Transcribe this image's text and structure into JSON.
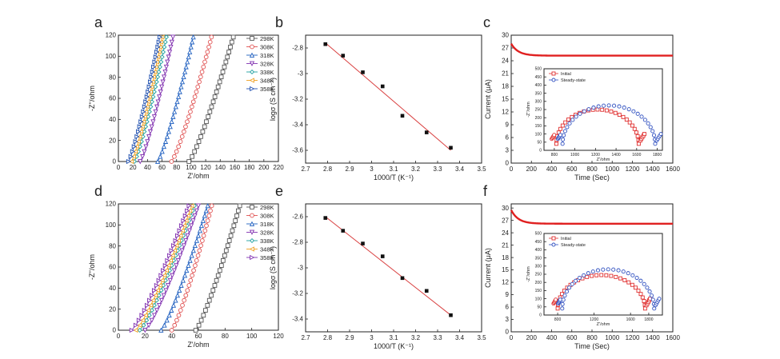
{
  "colors": {
    "axis": "#222222",
    "fit_line": "#d94040",
    "current_trace": "#e02020",
    "initial": "#e03030",
    "steady": "#3050c0"
  },
  "chart_data": [
    {
      "id": "a",
      "type": "line",
      "panel_label": "a",
      "xlabel": "Z'/ohm",
      "ylabel": "-Z''/ohm",
      "xlim": [
        0,
        220
      ],
      "ylim": [
        0,
        120
      ],
      "xticks": [
        0,
        20,
        40,
        60,
        80,
        100,
        120,
        140,
        160,
        180,
        200,
        220
      ],
      "yticks": [
        0,
        20,
        40,
        60,
        80,
        100,
        120
      ],
      "legend_position": "top-right",
      "series": [
        {
          "name": "298K",
          "color": "#555555",
          "marker": "square",
          "x0": 97,
          "x1": 158
        },
        {
          "name": "308K",
          "color": "#e05050",
          "marker": "circle",
          "x0": 73,
          "x1": 128
        },
        {
          "name": "318K",
          "color": "#2060c0",
          "marker": "triangle",
          "x0": 54,
          "x1": 103
        },
        {
          "name": "328K",
          "color": "#8030b0",
          "marker": "tri-down",
          "x0": 30,
          "x1": 75
        },
        {
          "name": "338K",
          "color": "#20a0a0",
          "marker": "diamond",
          "x0": 22,
          "x1": 66
        },
        {
          "name": "348K",
          "color": "#f0a020",
          "marker": "tri-left",
          "x0": 18,
          "x1": 60
        },
        {
          "name": "358K",
          "color": "#2050b0",
          "marker": "tri-right",
          "x0": 14,
          "x1": 57
        }
      ]
    },
    {
      "id": "b",
      "type": "scatter",
      "panel_label": "b",
      "xlabel": "1000/T (K⁻¹)",
      "ylabel": "logσ (S cm⁻¹)",
      "xlim": [
        2.7,
        3.5
      ],
      "ylim": [
        -3.7,
        -2.7
      ],
      "xticks": [
        2.7,
        2.8,
        2.9,
        3.0,
        3.1,
        3.2,
        3.3,
        3.4,
        3.5
      ],
      "yticks": [
        -3.6,
        -3.4,
        -3.2,
        -3.0,
        -2.8
      ],
      "points": [
        [
          2.79,
          -2.77
        ],
        [
          2.87,
          -2.86
        ],
        [
          2.96,
          -2.99
        ],
        [
          3.05,
          -3.1
        ],
        [
          3.14,
          -3.33
        ],
        [
          3.25,
          -3.46
        ],
        [
          3.36,
          -3.58
        ]
      ],
      "fit": [
        [
          2.79,
          -2.76
        ],
        [
          3.36,
          -3.6
        ]
      ]
    },
    {
      "id": "c",
      "type": "line",
      "panel_label": "c",
      "xlabel": "Time (Sec)",
      "ylabel": "Current (μA)",
      "xlim": [
        0,
        1600
      ],
      "ylim": [
        0,
        30
      ],
      "xticks": [
        0,
        200,
        400,
        600,
        800,
        1000,
        1200,
        1400,
        1600
      ],
      "yticks": [
        0,
        3,
        6,
        9,
        12,
        15,
        18,
        21,
        24,
        27,
        30
      ],
      "series": [
        {
          "i0": 28.0,
          "iss": 25.2
        }
      ],
      "inset": {
        "xlabel": "Z'/ohm",
        "ylabel": "-Z''/ohm",
        "xlim": [
          700,
          1850
        ],
        "ylim": [
          0,
          500
        ],
        "xticks": [
          800,
          1000,
          1200,
          1400,
          1600,
          1800
        ],
        "xtick_labels": [
          "800",
          "1000",
          "1200",
          "1400",
          "1600",
          "1800"
        ],
        "yticks": [
          0,
          50,
          100,
          150,
          200,
          250,
          300,
          350,
          400,
          450,
          500
        ],
        "legend": [
          "Initial",
          "Steady-state"
        ],
        "series": [
          {
            "name": "Initial",
            "x0": 820,
            "x1": 1620,
            "peak": 250
          },
          {
            "name": "Steady-state",
            "x0": 880,
            "x1": 1780,
            "peak": 275
          }
        ]
      }
    },
    {
      "id": "d",
      "type": "line",
      "panel_label": "d",
      "xlabel": "Z'/ohm",
      "ylabel": "-Z''/ohm",
      "xlim": [
        0,
        120
      ],
      "ylim": [
        0,
        120
      ],
      "xticks": [
        0,
        20,
        40,
        60,
        80,
        100,
        120
      ],
      "yticks": [
        0,
        20,
        40,
        60,
        80,
        100,
        120
      ],
      "legend_position": "top-right",
      "series": [
        {
          "name": "298K",
          "color": "#555555",
          "marker": "square",
          "x0": 58,
          "x1": 91
        },
        {
          "name": "308K",
          "color": "#e05050",
          "marker": "circle",
          "x0": 40,
          "x1": 70
        },
        {
          "name": "318K",
          "color": "#2060c0",
          "marker": "triangle",
          "x0": 32,
          "x1": 67
        },
        {
          "name": "328K",
          "color": "#8030b0",
          "marker": "tri-down",
          "x0": 20,
          "x1": 60
        },
        {
          "name": "338K",
          "color": "#20a0a0",
          "marker": "diamond",
          "x0": 16,
          "x1": 57
        },
        {
          "name": "348K",
          "color": "#f0a020",
          "marker": "tri-left",
          "x0": 13,
          "x1": 55
        },
        {
          "name": "358K",
          "color": "#8030b0",
          "marker": "tri-right",
          "x0": 10,
          "x1": 53
        }
      ]
    },
    {
      "id": "e",
      "type": "scatter",
      "panel_label": "e",
      "xlabel": "1000/T (K⁻¹)",
      "ylabel": "logσ (S cm⁻¹)",
      "xlim": [
        2.7,
        3.5
      ],
      "ylim": [
        -3.5,
        -2.5
      ],
      "xticks": [
        2.7,
        2.8,
        2.9,
        3.0,
        3.1,
        3.2,
        3.3,
        3.4,
        3.5
      ],
      "yticks": [
        -3.4,
        -3.2,
        -3.0,
        -2.8,
        -2.6
      ],
      "points": [
        [
          2.79,
          -2.61
        ],
        [
          2.87,
          -2.71
        ],
        [
          2.96,
          -2.81
        ],
        [
          3.05,
          -2.91
        ],
        [
          3.14,
          -3.08
        ],
        [
          3.25,
          -3.18
        ],
        [
          3.36,
          -3.37
        ]
      ],
      "fit": [
        [
          2.79,
          -2.6
        ],
        [
          3.36,
          -3.37
        ]
      ]
    },
    {
      "id": "f",
      "type": "line",
      "panel_label": "f",
      "xlabel": "Time (Sec)",
      "ylabel": "Current (μA)",
      "xlim": [
        0,
        1600
      ],
      "ylim": [
        0,
        31
      ],
      "xticks": [
        0,
        200,
        400,
        600,
        800,
        1000,
        1200,
        1400,
        1600
      ],
      "yticks": [
        0,
        3,
        6,
        9,
        12,
        15,
        18,
        21,
        24,
        27,
        30
      ],
      "series": [
        {
          "i0": 29.5,
          "iss": 26.2
        }
      ],
      "inset": {
        "xlabel": "Z'/ohm",
        "ylabel": "-Z''/ohm",
        "xlim": [
          650,
          1950
        ],
        "ylim": [
          0,
          500
        ],
        "xticks": [
          800,
          1200,
          1600,
          1800
        ],
        "xtick_labels": [
          "800",
          "1200",
          "1600",
          "1800"
        ],
        "yticks": [
          0,
          50,
          100,
          150,
          200,
          250,
          300,
          350,
          400,
          450,
          500
        ],
        "legend": [
          "Initial",
          "Steady-state"
        ],
        "series": [
          {
            "name": "Initial",
            "x0": 800,
            "x1": 1760,
            "peak": 245
          },
          {
            "name": "Steady-state",
            "x0": 850,
            "x1": 1860,
            "peak": 280
          }
        ]
      }
    }
  ]
}
